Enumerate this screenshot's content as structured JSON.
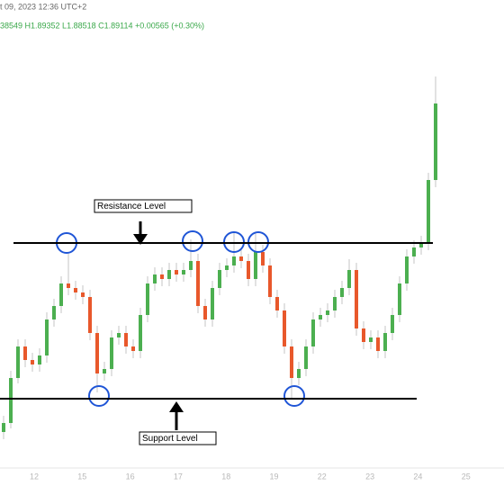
{
  "chart_data": {
    "type": "candlestick",
    "header_date": "t 09, 2023 12:36 UTC+2",
    "header_ohlc": "38549  H1.89352  L1.88518  C1.89114  +0.00565 (+0.30%)",
    "x_labels": [
      "12",
      "15",
      "16",
      "17",
      "18",
      "19",
      "22",
      "23",
      "24",
      "25"
    ],
    "ylim": [
      1.874,
      1.8985
    ],
    "up_color": "#4caf50",
    "down_color": "#e8582b",
    "open": [
      1.876,
      1.8765,
      1.879,
      1.88075,
      1.88,
      1.87975,
      1.88025,
      1.88225,
      1.883,
      1.88425,
      1.884,
      1.88375,
      1.8835,
      1.8815,
      1.87925,
      1.8795,
      1.88125,
      1.8815,
      1.88075,
      1.8805,
      1.8825,
      1.88425,
      1.88475,
      1.8845,
      1.885,
      1.88475,
      1.885,
      1.8855,
      1.883,
      1.88225,
      1.884,
      1.885,
      1.88525,
      1.88575,
      1.8855,
      1.8845,
      1.886,
      1.88525,
      1.8835,
      1.88275,
      1.88075,
      1.879,
      1.8795,
      1.88075,
      1.88225,
      1.8825,
      1.88275,
      1.8835,
      1.884,
      1.885,
      1.88175,
      1.881,
      1.88125,
      1.8805,
      1.8815,
      1.8825,
      1.88425,
      1.88575,
      1.88625,
      1.8865,
      1.89
    ],
    "high": [
      1.8769,
      1.8794,
      1.88115,
      1.88115,
      1.8804,
      1.88065,
      1.88265,
      1.8834,
      1.88465,
      1.8859,
      1.8844,
      1.88415,
      1.8839,
      1.8819,
      1.8799,
      1.88165,
      1.8819,
      1.8819,
      1.88115,
      1.8829,
      1.88465,
      1.88515,
      1.88515,
      1.8854,
      1.8854,
      1.8854,
      1.8867,
      1.8859,
      1.8834,
      1.8844,
      1.8854,
      1.88565,
      1.8871,
      1.88615,
      1.8859,
      1.8871,
      1.8864,
      1.88565,
      1.8839,
      1.88315,
      1.88115,
      1.8799,
      1.88115,
      1.88265,
      1.8829,
      1.88315,
      1.8839,
      1.8844,
      1.8856,
      1.8854,
      1.88215,
      1.88165,
      1.88165,
      1.8819,
      1.8829,
      1.88465,
      1.88615,
      1.88665,
      1.8869,
      1.8904,
      1.89575
    ],
    "low": [
      1.8756,
      1.8762,
      1.8787,
      1.8796,
      1.87935,
      1.87935,
      1.87985,
      1.88185,
      1.8826,
      1.8836,
      1.88335,
      1.8831,
      1.8811,
      1.8782,
      1.87885,
      1.8791,
      1.88085,
      1.88035,
      1.8801,
      1.8801,
      1.8821,
      1.88385,
      1.8841,
      1.8841,
      1.88435,
      1.88435,
      1.8846,
      1.8826,
      1.88185,
      1.88185,
      1.8836,
      1.8846,
      1.88485,
      1.8851,
      1.8841,
      1.8841,
      1.88485,
      1.8831,
      1.88235,
      1.88035,
      1.8779,
      1.8786,
      1.8791,
      1.88035,
      1.88185,
      1.8821,
      1.88235,
      1.8831,
      1.8836,
      1.88135,
      1.8806,
      1.8806,
      1.8801,
      1.8801,
      1.8811,
      1.8821,
      1.88385,
      1.88535,
      1.88585,
      1.8861,
      1.8896
    ],
    "close": [
      1.8765,
      1.879,
      1.88075,
      1.88,
      1.87975,
      1.88025,
      1.88225,
      1.883,
      1.88425,
      1.884,
      1.88375,
      1.8835,
      1.8815,
      1.87925,
      1.8795,
      1.88125,
      1.8815,
      1.88075,
      1.8805,
      1.8825,
      1.88425,
      1.88475,
      1.8845,
      1.885,
      1.88475,
      1.885,
      1.8855,
      1.883,
      1.88225,
      1.884,
      1.885,
      1.88525,
      1.88575,
      1.8855,
      1.8845,
      1.886,
      1.88525,
      1.8835,
      1.88275,
      1.88075,
      1.879,
      1.8795,
      1.88075,
      1.88225,
      1.8825,
      1.88275,
      1.8835,
      1.884,
      1.885,
      1.88175,
      1.881,
      1.88125,
      1.8805,
      1.8815,
      1.8825,
      1.88425,
      1.88575,
      1.88625,
      1.8865,
      1.89,
      1.89425
    ],
    "levels": [
      {
        "label": "Resistance Level",
        "value": 1.8865
      },
      {
        "label": "Support Level",
        "value": 1.87785
      }
    ]
  }
}
